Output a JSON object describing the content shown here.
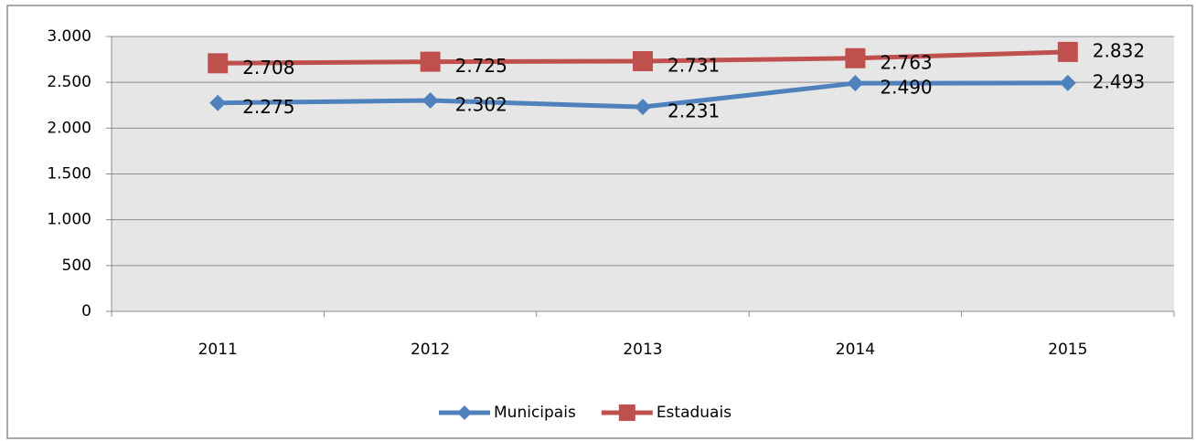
{
  "chart_data": {
    "type": "line",
    "categories": [
      "2011",
      "2012",
      "2013",
      "2014",
      "2015"
    ],
    "series": [
      {
        "name": "Municipais",
        "color": "#4f81bd",
        "marker": "diamond",
        "values": [
          2275,
          2302,
          2231,
          2490,
          2493
        ],
        "value_labels": [
          "2.275",
          "2.302",
          "2.231",
          "2.490",
          "2.493"
        ]
      },
      {
        "name": "Estaduais",
        "color": "#c0504d",
        "marker": "square",
        "values": [
          2708,
          2725,
          2731,
          2763,
          2832
        ],
        "value_labels": [
          "2.708",
          "2.725",
          "2.731",
          "2.763",
          "2.832"
        ]
      }
    ],
    "ylim": [
      0,
      3000
    ],
    "yticks": [
      0,
      500,
      {
        "value": 1000,
        "label": "1.000"
      },
      {
        "value": 1500,
        "label": "1.500"
      },
      {
        "value": 2000,
        "label": "2.000"
      },
      {
        "value": 2500,
        "label": "2.500"
      },
      {
        "value": 3000,
        "label": "3.000"
      }
    ],
    "grid": true,
    "legend": "bottom"
  }
}
